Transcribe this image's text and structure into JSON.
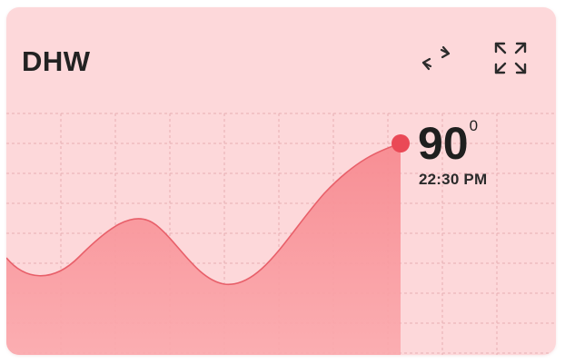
{
  "widget": {
    "title": "DHW",
    "swap_icon": "swap-arrows-icon",
    "expand_icon": "expand-icon",
    "value": "90",
    "unit": "0",
    "time": "22:30 PM"
  },
  "colors": {
    "card_background": "#fdd8da",
    "area_fill": "#f78a90",
    "curve_stroke": "#e8606a",
    "marker": "#ea4956",
    "grid": "#e7aeb2"
  }
}
